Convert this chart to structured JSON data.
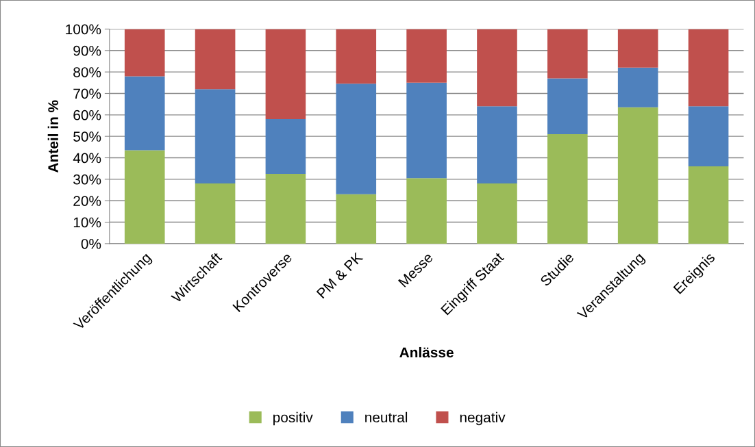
{
  "chart_data": {
    "type": "bar",
    "stacked": true,
    "xlabel": "Anlässe",
    "ylabel": "Anteil in %",
    "categories": [
      "Veröffentlichung",
      "Wirtschaft",
      "Kontroverse",
      "PM & PK",
      "Messe",
      "Eingriff Staat",
      "Studie",
      "Veranstaltung",
      "Ereignis"
    ],
    "series": [
      {
        "name": "positiv",
        "color": "#9bbb59",
        "values": [
          43.5,
          28,
          32.5,
          23,
          30.5,
          28,
          51,
          63.5,
          36
        ]
      },
      {
        "name": "neutral",
        "color": "#4f81bd",
        "values": [
          34.5,
          44,
          25.5,
          51.5,
          44.5,
          36,
          26,
          18.5,
          28
        ]
      },
      {
        "name": "negativ",
        "color": "#c0504d",
        "values": [
          22,
          28,
          42,
          25.5,
          25,
          36,
          23,
          18,
          36
        ]
      }
    ],
    "ylim": [
      0,
      100
    ],
    "yticks": [
      {
        "value": 0,
        "label": "0%"
      },
      {
        "value": 10,
        "label": "10%"
      },
      {
        "value": 20,
        "label": "20%"
      },
      {
        "value": 30,
        "label": "30%"
      },
      {
        "value": 40,
        "label": "40%"
      },
      {
        "value": 50,
        "label": "50%"
      },
      {
        "value": 60,
        "label": "60%"
      },
      {
        "value": 70,
        "label": "70%"
      },
      {
        "value": 80,
        "label": "80%"
      },
      {
        "value": 90,
        "label": "90%"
      },
      {
        "value": 100,
        "label": "100%"
      }
    ],
    "grid": "y",
    "legend": "bottom"
  }
}
